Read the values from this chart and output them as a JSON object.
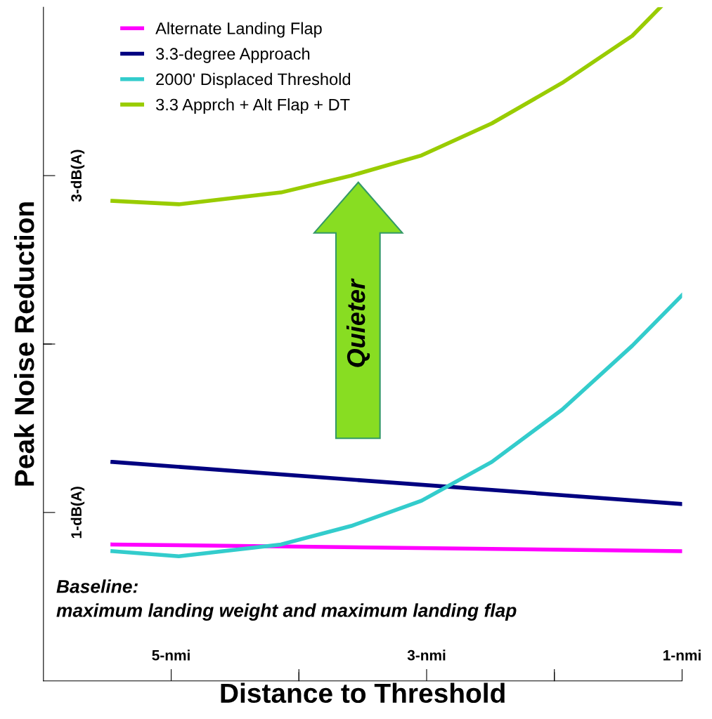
{
  "chart_data": {
    "type": "line",
    "xlabel": "Distance to Threshold",
    "ylabel": "Peak Noise Reduction",
    "xlim": [
      6,
      1
    ],
    "xticks": [
      {
        "value": 5,
        "label": "5-nmi"
      },
      {
        "value": 4,
        "label": null
      },
      {
        "value": 3,
        "label": "3-nmi"
      },
      {
        "value": 2,
        "label": null
      },
      {
        "value": 1,
        "label": "1-nmi"
      }
    ],
    "ylim": [
      0,
      4
    ],
    "yticks": [
      {
        "value": 1,
        "label": "1-dB(A)"
      },
      {
        "value": 2,
        "label": null
      },
      {
        "value": 3,
        "label": "3-dB(A)"
      }
    ],
    "grid": false,
    "legend": "top left",
    "marker": "none",
    "line_style": "solid",
    "series": [
      {
        "name": "Alternate Landing Flap",
        "color": "#ff00ff",
        "x": [
          5.46,
          1
        ],
        "values": [
          0.81,
          0.77
        ]
      },
      {
        "name": "3.3-degree Approach",
        "color": "#000080",
        "x": [
          5.46,
          1
        ],
        "values": [
          1.3,
          1.05
        ]
      },
      {
        "name": "2000' Displaced Threshold",
        "color": "#33cccc",
        "x": [
          5.46,
          4.94,
          4.14,
          3.59,
          3.04,
          2.49,
          1.94,
          1.39,
          1
        ],
        "values": [
          0.77,
          0.74,
          0.81,
          0.92,
          1.07,
          1.3,
          1.61,
          1.99,
          2.29
        ]
      },
      {
        "name": "3.3 Apprch + Alt Flap + DT",
        "color": "#99cc00",
        "x": [
          5.46,
          4.94,
          4.14,
          3.59,
          3.04,
          2.49,
          1.94,
          1.39,
          1.17
        ],
        "values": [
          2.85,
          2.83,
          2.9,
          3.0,
          3.12,
          3.31,
          3.55,
          3.83,
          4.0
        ]
      }
    ],
    "annotations": [
      "Quieter",
      "Baseline:\nmaximum landing weight and maximum landing flap"
    ]
  }
}
